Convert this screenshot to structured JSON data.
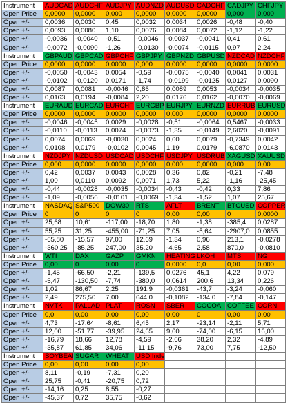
{
  "colors": {
    "red": "#ff0000",
    "green": "#00b050",
    "orange": "#ffc000",
    "label_blue": "#b8cce4",
    "white": "#ffffff"
  },
  "blocks": [
    {
      "instruments": [
        {
          "name": "AUDCAD",
          "head": "red"
        },
        {
          "name": "AUDCHF",
          "head": "red"
        },
        {
          "name": "AUDJPY",
          "head": "red"
        },
        {
          "name": "AUDNZD",
          "head": "red"
        },
        {
          "name": "AUDUSD",
          "head": "red"
        },
        {
          "name": "CADCHF",
          "head": "red"
        },
        {
          "name": "CADJPY",
          "head": "green"
        },
        {
          "name": "CHFJPY",
          "head": "green"
        }
      ],
      "open_price": {
        "values": [
          "0,0000",
          "0,0000",
          "0,000",
          "0,0000",
          "0,0000",
          "0,0000",
          "0,000",
          "0,000"
        ],
        "colors": [
          "orange",
          "orange",
          "orange",
          "orange",
          "orange",
          "orange",
          "green",
          "green"
        ]
      },
      "rows": [
        [
          "0,0036",
          "0,0030",
          "0,45",
          "0,0032",
          "0,0034",
          "0,0026",
          "-0,48",
          "-0,40"
        ],
        [
          "0,0093",
          "0,0080",
          "1,10",
          "0,0076",
          "0,0084",
          "0,0072",
          "-1,12",
          "-1,22"
        ],
        [
          "-0,0036",
          "-0,0040",
          "-0,51",
          "-0,0046",
          "-0,0037",
          "-0,0041",
          "0,41",
          "0,61"
        ],
        [
          "-0,0072",
          "-0,0090",
          "-1,26",
          "-0,0130",
          "-0,0074",
          "-0,0115",
          "0,97",
          "2,24"
        ]
      ]
    },
    {
      "instruments": [
        {
          "name": "GBPAUD",
          "head": "green"
        },
        {
          "name": "GBPCAD",
          "head": "green"
        },
        {
          "name": "GBPCHF",
          "head": "red"
        },
        {
          "name": "GBPJPY",
          "head": "green"
        },
        {
          "name": "GBPNZD",
          "head": "green"
        },
        {
          "name": "GBPUSD",
          "head": "green"
        },
        {
          "name": "NZDCAD",
          "head": "red"
        },
        {
          "name": "NZDCHF",
          "head": "red"
        }
      ],
      "open_price": {
        "values": [
          "0,0000",
          "0,0000",
          "0,0000",
          "0,000",
          "0,0000",
          "0,0000",
          "0,0000",
          "0,0000"
        ],
        "colors": [
          "orange",
          "orange",
          "orange",
          "orange",
          "orange",
          "orange",
          "orange",
          "orange"
        ]
      },
      "rows": [
        [
          "-0,0050",
          "-0,0043",
          "0,0054",
          "-0,59",
          "-0,0075",
          "-0,0040",
          "0,0041",
          "0,0031"
        ],
        [
          "-0,0102",
          "-0,0120",
          "0,0171",
          "-1,74",
          "-0,0199",
          "-0,0125",
          "0,0127",
          "0,0090"
        ],
        [
          "0,0087",
          "0,0081",
          "-0,0046",
          "0,86",
          "0,0089",
          "0,0053",
          "-0,0034",
          "-0,0035"
        ],
        [
          "0,0163",
          "0,0194",
          "-0,0084",
          "2,20",
          "0,0176",
          "0,0162",
          "-0,0070",
          "-0,0069"
        ]
      ]
    },
    {
      "instruments": [
        {
          "name": "EURAUD",
          "head": "green"
        },
        {
          "name": "EURCAD",
          "head": "green"
        },
        {
          "name": "EURCHF",
          "head": "red"
        },
        {
          "name": "EURGBP",
          "head": "green"
        },
        {
          "name": "EURJPY",
          "head": "green"
        },
        {
          "name": "EURNZD",
          "head": "green"
        },
        {
          "name": "EURRUB",
          "head": "red"
        },
        {
          "name": "EURUSD",
          "head": "green"
        }
      ],
      "open_price": {
        "values": [
          "0,0000",
          "0,0000",
          "0,0000",
          "0,0000",
          "0,000",
          "0,0000",
          "0,0000",
          "0,0000"
        ],
        "colors": [
          "orange",
          "orange",
          "orange",
          "orange",
          "orange",
          "orange",
          "orange",
          "orange"
        ]
      },
      "rows": [
        [
          "-0,0046",
          "-0,0045",
          "0,0029",
          "-0,0028",
          "-0,51",
          "-0,0064",
          "0,5467",
          "-0,0033"
        ],
        [
          "-0,0110",
          "-0,0113",
          "0,0074",
          "-0,0073",
          "-1,35",
          "-0,0149",
          "2,6020",
          "-0,0091"
        ],
        [
          "0,0074",
          "0,0069",
          "-0,0030",
          "0,0024",
          "0,60",
          "0,0079",
          "-0,7349",
          "0,0042"
        ],
        [
          "0,0108",
          "0,0179",
          "-0,0102",
          "0,0045",
          "1,19",
          "0,0179",
          "-6,0870",
          "0,0143"
        ]
      ]
    },
    {
      "instruments": [
        {
          "name": "NZDJPY",
          "head": "red"
        },
        {
          "name": "NZDUSD",
          "head": "red"
        },
        {
          "name": "USDCAD",
          "head": "red"
        },
        {
          "name": "USDCHF",
          "head": "red"
        },
        {
          "name": "USDJPY",
          "head": "red"
        },
        {
          "name": "USDRUB",
          "head": "red"
        },
        {
          "name": "XAGUSD",
          "head": "green"
        },
        {
          "name": "XAUUSD",
          "head": "green"
        }
      ],
      "open_price": {
        "values": [
          "0,000",
          "0,0000",
          "0,0000",
          "0,0000",
          "0,000",
          "0,0000",
          "0,000",
          "0,00"
        ],
        "colors": [
          "orange",
          "orange",
          "orange",
          "orange",
          "orange",
          "orange",
          "orange",
          "orange"
        ]
      },
      "rows": [
        [
          "0,42",
          "0,0037",
          "0,0043",
          "0,0028",
          "0,36",
          "0,82",
          "-0,21",
          "-7,48"
        ],
        [
          "1,00",
          "0,0110",
          "0,0092",
          "0,0071",
          "1,73",
          "5,22",
          "-1,16",
          "-25,45"
        ],
        [
          "-0,44",
          "-0,0028",
          "-0,0035",
          "-0,0034",
          "-0,43",
          "-0,42",
          "0,33",
          "7,86"
        ],
        [
          "-1,09",
          "-0,0056",
          "-0,0101",
          "-0,0069",
          "-1,34",
          "-1,52",
          "1,07",
          "25,67"
        ]
      ]
    },
    {
      "instruments": [
        {
          "name": "NASDAQ",
          "head": "orange"
        },
        {
          "name": "S&P500",
          "head": "orange"
        },
        {
          "name": "DOW30",
          "head": "green"
        },
        {
          "name": "RTS",
          "head": "green"
        },
        {
          "name": "AFLT",
          "head": "red"
        },
        {
          "name": "BRENT",
          "head": "green"
        },
        {
          "name": "BTCUSD",
          "head": "green"
        },
        {
          "name": "COPPER",
          "head": "red"
        }
      ],
      "open_price": {
        "values": [
          "0",
          "0",
          "0",
          "0",
          "0,00",
          "0,00",
          "0",
          "0,0000"
        ],
        "colors": [
          "orange",
          "orange",
          "orange",
          "orange",
          "orange",
          "orange",
          "orange",
          "orange"
        ]
      },
      "rows": [
        [
          "25,68",
          "10,61",
          "-117,00",
          "-18,70",
          "1,80",
          "-1,38",
          "-385,4",
          "0,0287"
        ],
        [
          "55,25",
          "31,25",
          "-455,00",
          "-71,25",
          "7,05",
          "-5,64",
          "-2907,0",
          "0,0855"
        ],
        [
          "-65,80",
          "-15,57",
          "97,00",
          "12,69",
          "-1,34",
          "0,96",
          "213,1",
          "-0,0278"
        ],
        [
          "-360,25",
          "-85,25",
          "247,00",
          "35,20",
          "-4,65",
          "2,58",
          "870,0",
          "-0,0810"
        ]
      ]
    },
    {
      "instruments": [
        {
          "name": "WTI",
          "head": "green"
        },
        {
          "name": "DAX",
          "head": "green"
        },
        {
          "name": "GAZP",
          "head": "green"
        },
        {
          "name": "GMKN",
          "head": "green"
        },
        {
          "name": "HEATING",
          "head": "red"
        },
        {
          "name": "LKOH",
          "head": "red"
        },
        {
          "name": "MTS",
          "head": "red"
        },
        {
          "name": "NG",
          "head": "red"
        }
      ],
      "open_price": {
        "values": [
          "0,00",
          "0",
          "0,00",
          "0",
          "0,0000",
          "0,0",
          "0,00",
          "0,000"
        ],
        "colors": [
          "green",
          "green",
          "green",
          "green",
          "orange",
          "orange",
          "orange",
          "orange"
        ]
      },
      "rows": [
        [
          "-1,45",
          "-66,50",
          "-2,21",
          "-139,5",
          "0,0276",
          "45,1",
          "4,22",
          "0,079"
        ],
        [
          "-5,47",
          "-130,50",
          "-7,74",
          "-380,0",
          "0,0614",
          "200,6",
          "13,34",
          "0,226"
        ],
        [
          "1,02",
          "86,67",
          "2,25",
          "191,9",
          "-0,0361",
          "-43,7",
          "-3,24",
          "-0,060"
        ],
        [
          "2,49",
          "275,50",
          "7,00",
          "644,0",
          "-0,1082",
          "-134,0",
          "-7,84",
          "-0,147"
        ]
      ]
    },
    {
      "instruments": [
        {
          "name": "NVTK",
          "head": "red"
        },
        {
          "name": "PALLAD",
          "head": "red"
        },
        {
          "name": "PLAT",
          "head": "red"
        },
        {
          "name": "ROSN",
          "head": "red"
        },
        {
          "name": "SBER",
          "head": "red"
        },
        {
          "name": "COCOA",
          "head": "green"
        },
        {
          "name": "COFFEE",
          "head": "green"
        },
        {
          "name": "CORN",
          "head": "red"
        }
      ],
      "open_price": {
        "values": [
          "0,0",
          "0,00",
          "0,00",
          "0,00",
          "0,00",
          "0",
          "0,00",
          "0,00"
        ],
        "colors": [
          "orange",
          "orange",
          "orange",
          "orange",
          "orange",
          "orange",
          "orange",
          "orange"
        ]
      },
      "rows": [
        [
          "4,73",
          "-17,64",
          "-8,61",
          "6,45",
          "2,17",
          "-23,14",
          "-2,11",
          "5,71"
        ],
        [
          "12,00",
          "-51,77",
          "-39,95",
          "24,65",
          "9,60",
          "-74,00",
          "-6,15",
          "16,00"
        ],
        [
          "-16,79",
          "18,66",
          "12,78",
          "-4,59",
          "-2,66",
          "38,20",
          "2,32",
          "-4,89"
        ],
        [
          "-35,87",
          "61,85",
          "34,06",
          "-11,15",
          "-9,76",
          "73,00",
          "7,75",
          "-12,50"
        ]
      ]
    },
    {
      "instruments": [
        {
          "name": "SOYBEAN",
          "head": "red"
        },
        {
          "name": "SUGAR",
          "head": "green"
        },
        {
          "name": "WHEAT",
          "head": "green"
        },
        {
          "name": "USD Index",
          "head": "red"
        }
      ],
      "open_price": {
        "values": [
          "0,00",
          "0,00",
          "0,00",
          "0,00"
        ],
        "colors": [
          "orange",
          "orange",
          "orange",
          "orange"
        ]
      },
      "rows": [
        [
          "8,11",
          "-0,19",
          "-7,31",
          "0,20"
        ],
        [
          "25,75",
          "-0,41",
          "-20,75",
          "0,72"
        ],
        [
          "-14,16",
          "0,25",
          "8,55",
          "-0,27"
        ],
        [
          "-45,37",
          "0,72",
          "35,75",
          "-0,62"
        ]
      ]
    }
  ],
  "labels": {
    "instrument": "Instrument",
    "open_price": "Open Price",
    "change": "Open +/-"
  }
}
